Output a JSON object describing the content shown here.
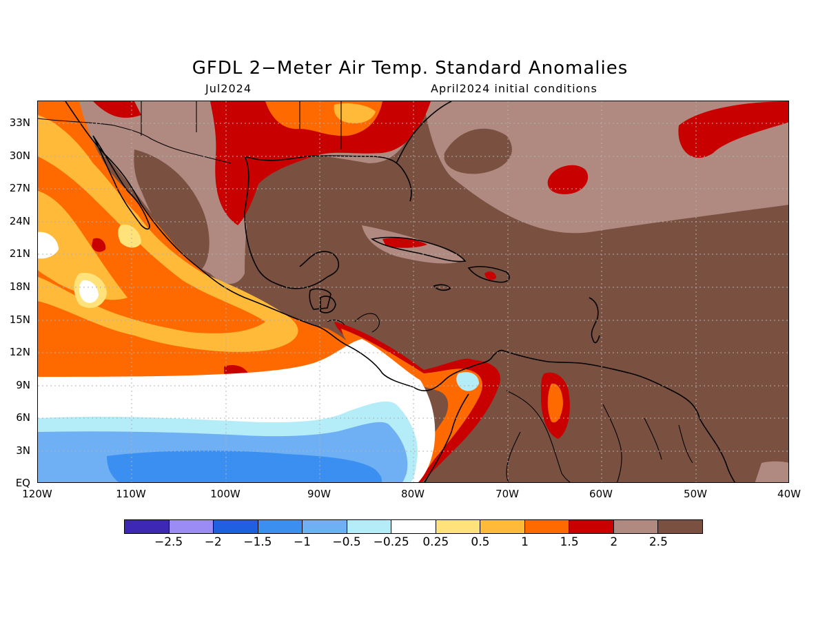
{
  "title": "GFDL 2−Meter Air Temp. Standard Anomalies",
  "valid_time": "Jul2024",
  "init_conditions": "April2024 initial conditions",
  "map": {
    "lat_labels": [
      "33N",
      "30N",
      "27N",
      "24N",
      "21N",
      "18N",
      "15N",
      "12N",
      "9N",
      "6N",
      "3N",
      "EQ"
    ],
    "lon_labels": [
      "120W",
      "110W",
      "100W",
      "90W",
      "80W",
      "70W",
      "60W",
      "50W",
      "40W"
    ],
    "lat_range": [
      "EQ",
      "35N"
    ],
    "lon_range": [
      "120W",
      "40W"
    ],
    "grid_lines": "dotted"
  },
  "legend": {
    "colors": [
      "#3c28b4",
      "#9b8cf5",
      "#1f5fe0",
      "#3a8ff0",
      "#6fb0f5",
      "#b4ecf8",
      "#ffffff",
      "#ffe27a",
      "#ffba3a",
      "#ff6a00",
      "#c80000",
      "#b08a80",
      "#7a5040"
    ],
    "labels": [
      "−2.5",
      "−2",
      "−1.5",
      "−1",
      "−0.5",
      "−0.25",
      "0.25",
      "0.5",
      "1",
      "1.5",
      "2",
      "2.5"
    ]
  },
  "chart_data": {
    "type": "heatmap",
    "variable": "2-Meter Air Temperature Standard Anomaly",
    "contour_levels": [
      -2.5,
      -2,
      -1.5,
      -1,
      -0.5,
      -0.25,
      0.25,
      0.5,
      1,
      1.5,
      2,
      2.5
    ],
    "dominant_regions": [
      {
        "region": "Caribbean, Gulf of Mexico and western tropical Atlantic",
        "anomaly": "> 2.5"
      },
      {
        "region": "Eastern tropical Pacific near the Equator",
        "anomaly": "-1.5 to -0.5"
      },
      {
        "region": "Eastern Pacific off Mexico",
        "anomaly": "0.5 to 2"
      },
      {
        "region": "Southern United States",
        "anomaly": "2 to 2.5"
      }
    ]
  }
}
